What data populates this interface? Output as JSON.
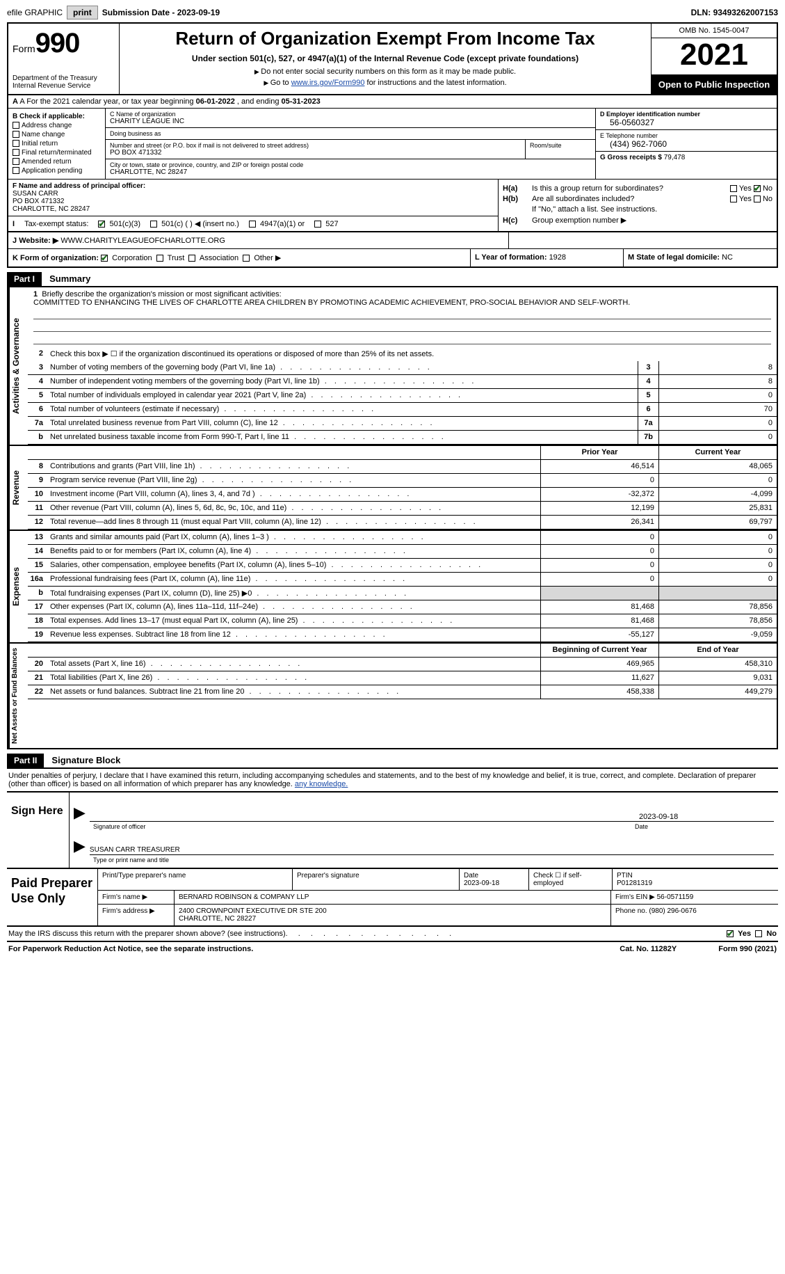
{
  "topbar": {
    "efile_label": "efile GRAPHIC",
    "print_btn": "print",
    "sub_date_label": "Submission Date - ",
    "sub_date": "2023-09-19",
    "dln_label": "DLN: ",
    "dln": "93493262007153"
  },
  "header": {
    "form_word": "Form",
    "form_num": "990",
    "dept": "Department of the Treasury\nInternal Revenue Service",
    "title": "Return of Organization Exempt From Income Tax",
    "subtitle": "Under section 501(c), 527, or 4947(a)(1) of the Internal Revenue Code (except private foundations)",
    "note1": "Do not enter social security numbers on this form as it may be made public.",
    "note2_pre": "Go to ",
    "note2_link": "www.irs.gov/Form990",
    "note2_post": " for instructions and the latest information.",
    "omb": "OMB No. 1545-0047",
    "year": "2021",
    "open": "Open to Public Inspection"
  },
  "line_a": {
    "pre": "A For the 2021 calendar year, or tax year beginning ",
    "begin": "06-01-2022",
    "mid": " , and ending ",
    "end": "05-31-2023"
  },
  "col_b": {
    "label": "B Check if applicable:",
    "items": [
      "Address change",
      "Name change",
      "Initial return",
      "Final return/terminated",
      "Amended return",
      "Application pending"
    ]
  },
  "col_c": {
    "name_label": "C Name of organization",
    "name": "CHARITY LEAGUE INC",
    "dba_label": "Doing business as",
    "dba": "",
    "addr_label": "Number and street (or P.O. box if mail is not delivered to street address)",
    "addr": "PO BOX 471332",
    "room_label": "Room/suite",
    "city_label": "City or town, state or province, country, and ZIP or foreign postal code",
    "city": "CHARLOTTE, NC  28247"
  },
  "col_d": {
    "ein_label": "D Employer identification number",
    "ein": "56-0560327",
    "tel_label": "E Telephone number",
    "tel": "(434) 962-7060",
    "gross_label": "G Gross receipts $ ",
    "gross": "79,478"
  },
  "officer": {
    "label": "F Name and address of principal officer:",
    "name": "SUSAN CARR",
    "addr1": "PO BOX 471332",
    "addr2": "CHARLOTTE, NC  28247"
  },
  "h": {
    "a_label": "H(a)",
    "a_text": "Is this a group return for subordinates?",
    "b_label": "H(b)",
    "b_text": "Are all subordinates included?",
    "b_note": "If \"No,\" attach a list. See instructions.",
    "c_label": "H(c)",
    "c_text": "Group exemption number ▶",
    "yes": "Yes",
    "no": "No"
  },
  "row_i": {
    "label": "I",
    "text": "Tax-exempt status:",
    "opts": [
      "501(c)(3)",
      "501(c) (  ) ◀ (insert no.)",
      "4947(a)(1) or",
      "527"
    ]
  },
  "row_j": {
    "label": "J",
    "text": "Website: ▶",
    "val": "WWW.CHARITYLEAGUEOFCHARLOTTE.ORG"
  },
  "row_k": {
    "label": "K Form of organization:",
    "opts": [
      "Corporation",
      "Trust",
      "Association",
      "Other ▶"
    ]
  },
  "row_l": {
    "label": "L Year of formation: ",
    "val": "1928"
  },
  "row_m": {
    "label": "M State of legal domicile: ",
    "val": "NC"
  },
  "part1": {
    "hdr": "Part I",
    "title": "Summary",
    "line1_label": "1",
    "line1_text": "Briefly describe the organization's mission or most significant activities:",
    "mission": "COMMITTED TO ENHANCING THE LIVES OF CHARLOTTE AREA CHILDREN BY PROMOTING ACADEMIC ACHIEVEMENT, PRO-SOCIAL BEHAVIOR AND SELF-WORTH.",
    "line2_label": "2",
    "line2_text": "Check this box ▶ ☐ if the organization discontinued its operations or disposed of more than 25% of its net assets."
  },
  "gov_rows": [
    {
      "n": "3",
      "desc": "Number of voting members of the governing body (Part VI, line 1a)",
      "box": "3",
      "val": "8"
    },
    {
      "n": "4",
      "desc": "Number of independent voting members of the governing body (Part VI, line 1b)",
      "box": "4",
      "val": "8"
    },
    {
      "n": "5",
      "desc": "Total number of individuals employed in calendar year 2021 (Part V, line 2a)",
      "box": "5",
      "val": "0"
    },
    {
      "n": "6",
      "desc": "Total number of volunteers (estimate if necessary)",
      "box": "6",
      "val": "70"
    },
    {
      "n": "7a",
      "desc": "Total unrelated business revenue from Part VIII, column (C), line 12",
      "box": "7a",
      "val": "0"
    },
    {
      "n": "b",
      "desc": "Net unrelated business taxable income from Form 990-T, Part I, line 11",
      "box": "7b",
      "val": "0"
    }
  ],
  "rev_head": {
    "prior": "Prior Year",
    "curr": "Current Year"
  },
  "rev_rows": [
    {
      "n": "8",
      "desc": "Contributions and grants (Part VIII, line 1h)",
      "p": "46,514",
      "c": "48,065"
    },
    {
      "n": "9",
      "desc": "Program service revenue (Part VIII, line 2g)",
      "p": "0",
      "c": "0"
    },
    {
      "n": "10",
      "desc": "Investment income (Part VIII, column (A), lines 3, 4, and 7d )",
      "p": "-32,372",
      "c": "-4,099"
    },
    {
      "n": "11",
      "desc": "Other revenue (Part VIII, column (A), lines 5, 6d, 8c, 9c, 10c, and 11e)",
      "p": "12,199",
      "c": "25,831"
    },
    {
      "n": "12",
      "desc": "Total revenue—add lines 8 through 11 (must equal Part VIII, column (A), line 12)",
      "p": "26,341",
      "c": "69,797"
    }
  ],
  "exp_rows": [
    {
      "n": "13",
      "desc": "Grants and similar amounts paid (Part IX, column (A), lines 1–3 )",
      "p": "0",
      "c": "0"
    },
    {
      "n": "14",
      "desc": "Benefits paid to or for members (Part IX, column (A), line 4)",
      "p": "0",
      "c": "0"
    },
    {
      "n": "15",
      "desc": "Salaries, other compensation, employee benefits (Part IX, column (A), lines 5–10)",
      "p": "0",
      "c": "0"
    },
    {
      "n": "16a",
      "desc": "Professional fundraising fees (Part IX, column (A), line 11e)",
      "p": "0",
      "c": "0"
    },
    {
      "n": "b",
      "desc": "Total fundraising expenses (Part IX, column (D), line 25) ▶0",
      "p": "",
      "c": "",
      "shade": true
    },
    {
      "n": "17",
      "desc": "Other expenses (Part IX, column (A), lines 11a–11d, 11f–24e)",
      "p": "81,468",
      "c": "78,856"
    },
    {
      "n": "18",
      "desc": "Total expenses. Add lines 13–17 (must equal Part IX, column (A), line 25)",
      "p": "81,468",
      "c": "78,856"
    },
    {
      "n": "19",
      "desc": "Revenue less expenses. Subtract line 18 from line 12",
      "p": "-55,127",
      "c": "-9,059"
    }
  ],
  "na_head": {
    "prior": "Beginning of Current Year",
    "curr": "End of Year"
  },
  "na_rows": [
    {
      "n": "20",
      "desc": "Total assets (Part X, line 16)",
      "p": "469,965",
      "c": "458,310"
    },
    {
      "n": "21",
      "desc": "Total liabilities (Part X, line 26)",
      "p": "11,627",
      "c": "9,031"
    },
    {
      "n": "22",
      "desc": "Net assets or fund balances. Subtract line 21 from line 20",
      "p": "458,338",
      "c": "449,279"
    }
  ],
  "side_labels": {
    "gov": "Activities & Governance",
    "rev": "Revenue",
    "exp": "Expenses",
    "na": "Net Assets or Fund Balances"
  },
  "part2": {
    "hdr": "Part II",
    "title": "Signature Block",
    "intro": "Under penalties of perjury, I declare that I have examined this return, including accompanying schedules and statements, and to the best of my knowledge and belief, it is true, correct, and complete. Declaration of preparer (other than officer) is based on all information of which preparer has any knowledge."
  },
  "sign": {
    "here": "Sign Here",
    "sig_cap": "Signature of officer",
    "date": "2023-09-18",
    "date_cap": "Date",
    "name": "SUSAN CARR TREASURER",
    "name_cap": "Type or print name and title"
  },
  "prep": {
    "label": "Paid Preparer Use Only",
    "r1": {
      "a": "Print/Type preparer's name",
      "b": "Preparer's signature",
      "c_label": "Date",
      "c": "2023-09-18",
      "d": "Check ☐ if self-employed",
      "e_label": "PTIN",
      "e": "P01281319"
    },
    "r2": {
      "a": "Firm's name      ▶",
      "b": "BERNARD ROBINSON & COMPANY LLP",
      "c": "Firm's EIN ▶",
      "d": "56-0571159"
    },
    "r3": {
      "a": "Firm's address ▶",
      "b": "2400 CROWNPOINT EXECUTIVE DR STE 200\nCHARLOTTE, NC  28227",
      "c": "Phone no. ",
      "d": "(980) 296-0676"
    }
  },
  "discuss": {
    "text": "May the IRS discuss this return with the preparer shown above? (see instructions)",
    "yes": "Yes",
    "no": "No"
  },
  "footer": {
    "left": "For Paperwork Reduction Act Notice, see the separate instructions.",
    "mid": "Cat. No. 11282Y",
    "right": "Form 990 (2021)"
  }
}
